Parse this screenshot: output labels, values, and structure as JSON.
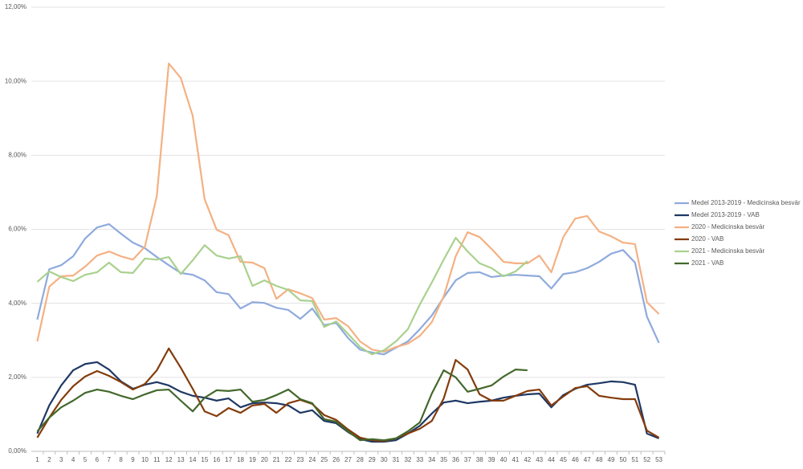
{
  "chart_data": {
    "type": "line",
    "categories": [
      1,
      2,
      3,
      4,
      5,
      6,
      7,
      8,
      9,
      10,
      11,
      12,
      13,
      14,
      15,
      16,
      17,
      18,
      19,
      20,
      21,
      22,
      23,
      24,
      25,
      26,
      27,
      28,
      29,
      30,
      31,
      32,
      33,
      34,
      35,
      36,
      37,
      38,
      39,
      40,
      41,
      42,
      43,
      44,
      45,
      46,
      47,
      48,
      49,
      50,
      51,
      52,
      53
    ],
    "ylim": [
      0,
      12
    ],
    "yticks": [
      {
        "value": 0,
        "label": "0,00%"
      },
      {
        "value": 2,
        "label": "2,00%"
      },
      {
        "value": 4,
        "label": "4,00%"
      },
      {
        "value": 6,
        "label": "6,00%"
      },
      {
        "value": 8,
        "label": "8,00%"
      },
      {
        "value": 10,
        "label": "10,00%"
      },
      {
        "value": 12,
        "label": "12,00%"
      }
    ],
    "grid": true,
    "legend": "right",
    "series": [
      {
        "name": "Medel 2013-2019 - Medicinska besvär",
        "color": "#8faadc",
        "values": [
          3.56,
          4.92,
          5.03,
          5.27,
          5.75,
          6.05,
          6.14,
          5.88,
          5.64,
          5.49,
          5.25,
          5.03,
          4.82,
          4.77,
          4.62,
          4.3,
          4.25,
          3.86,
          4.03,
          4.01,
          3.88,
          3.82,
          3.58,
          3.86,
          3.41,
          3.47,
          3.06,
          2.75,
          2.67,
          2.62,
          2.8,
          2.97,
          3.3,
          3.67,
          4.16,
          4.62,
          4.82,
          4.84,
          4.71,
          4.75,
          4.77,
          4.75,
          4.73,
          4.4,
          4.79,
          4.84,
          4.95,
          5.12,
          5.34,
          5.44,
          5.1,
          3.64,
          2.93
        ]
      },
      {
        "name": "Medel 2013-2019 - VAB",
        "color": "#1f3864",
        "values": [
          0.48,
          1.24,
          1.78,
          2.19,
          2.36,
          2.41,
          2.21,
          1.89,
          1.69,
          1.8,
          1.87,
          1.78,
          1.61,
          1.5,
          1.45,
          1.37,
          1.43,
          1.19,
          1.3,
          1.32,
          1.3,
          1.24,
          1.04,
          1.11,
          0.82,
          0.76,
          0.52,
          0.33,
          0.26,
          0.26,
          0.3,
          0.48,
          0.69,
          1.02,
          1.32,
          1.37,
          1.3,
          1.34,
          1.37,
          1.45,
          1.5,
          1.54,
          1.56,
          1.19,
          1.52,
          1.69,
          1.8,
          1.84,
          1.89,
          1.87,
          1.8,
          0.48,
          0.35
        ]
      },
      {
        "name": "2020 - Medicinska besvär",
        "color": "#f4b183",
        "values": [
          2.97,
          4.45,
          4.73,
          4.75,
          4.99,
          5.29,
          5.4,
          5.27,
          5.18,
          5.53,
          6.9,
          10.48,
          10.09,
          9.07,
          6.81,
          5.99,
          5.84,
          5.12,
          5.1,
          4.95,
          4.12,
          4.38,
          4.27,
          4.14,
          3.56,
          3.6,
          3.38,
          2.97,
          2.75,
          2.69,
          2.82,
          2.91,
          3.12,
          3.49,
          4.19,
          5.27,
          5.92,
          5.79,
          5.47,
          5.12,
          5.08,
          5.08,
          5.29,
          4.84,
          5.79,
          6.29,
          6.36,
          5.94,
          5.81,
          5.64,
          5.6,
          4.03,
          3.71
        ]
      },
      {
        "name": "2020 - VAB",
        "color": "#843c0c",
        "values": [
          0.37,
          0.91,
          1.39,
          1.76,
          2.02,
          2.17,
          2.04,
          1.87,
          1.67,
          1.82,
          2.19,
          2.78,
          2.26,
          1.69,
          1.08,
          0.95,
          1.17,
          1.04,
          1.24,
          1.28,
          1.04,
          1.3,
          1.39,
          1.28,
          0.98,
          0.85,
          0.59,
          0.37,
          0.3,
          0.28,
          0.35,
          0.48,
          0.61,
          0.82,
          1.43,
          2.47,
          2.21,
          1.54,
          1.37,
          1.37,
          1.5,
          1.63,
          1.67,
          1.24,
          1.48,
          1.71,
          1.76,
          1.5,
          1.45,
          1.41,
          1.41,
          0.56,
          0.37
        ]
      },
      {
        "name": "2021 - Medicinska besvär",
        "color": "#a9d18e",
        "values": [
          4.58,
          4.86,
          4.71,
          4.6,
          4.77,
          4.84,
          5.1,
          4.84,
          4.82,
          5.21,
          5.18,
          5.25,
          4.79,
          5.16,
          5.57,
          5.29,
          5.21,
          5.27,
          4.47,
          4.62,
          4.47,
          4.36,
          4.08,
          4.06,
          3.36,
          3.51,
          3.17,
          2.82,
          2.62,
          2.73,
          2.97,
          3.3,
          3.97,
          4.56,
          5.18,
          5.77,
          5.4,
          5.08,
          4.95,
          4.73,
          4.86,
          5.14,
          null,
          null,
          null,
          null,
          null,
          null,
          null,
          null,
          null,
          null,
          null
        ]
      },
      {
        "name": "2021 - VAB",
        "color": "#43682b",
        "values": [
          0.54,
          0.91,
          1.19,
          1.37,
          1.58,
          1.67,
          1.61,
          1.5,
          1.41,
          1.54,
          1.65,
          1.67,
          1.37,
          1.08,
          1.45,
          1.65,
          1.63,
          1.67,
          1.34,
          1.39,
          1.52,
          1.67,
          1.41,
          1.3,
          0.87,
          0.8,
          0.54,
          0.3,
          0.33,
          0.3,
          0.35,
          0.54,
          0.78,
          1.56,
          2.19,
          2.0,
          1.61,
          1.69,
          1.78,
          2.02,
          2.21,
          2.19,
          null,
          null,
          null,
          null,
          null,
          null,
          null,
          null,
          null,
          null,
          null
        ]
      }
    ]
  }
}
